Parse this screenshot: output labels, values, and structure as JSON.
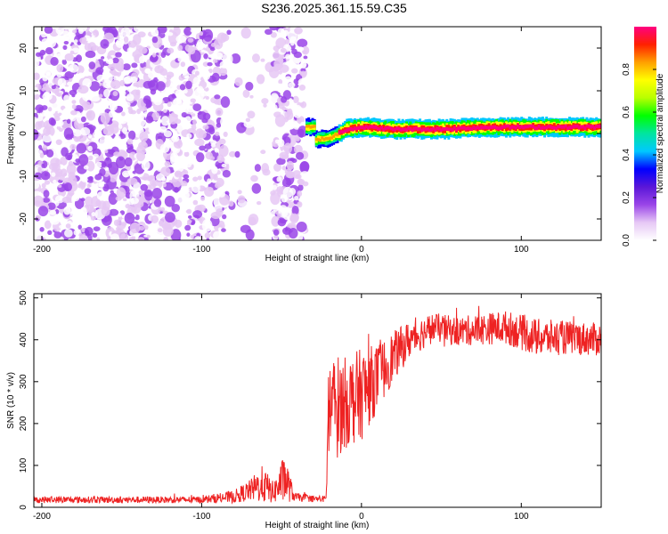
{
  "title": "S236.2025.361.15.59.C35",
  "chart_data": [
    {
      "type": "heatmap",
      "xlabel": "Height of straight line (km)",
      "ylabel": "Frequency (Hz)",
      "xlim": [
        -205,
        150
      ],
      "ylim": [
        -25,
        25
      ],
      "x_ticks": [
        -200,
        -100,
        0,
        100
      ],
      "y_ticks": [
        -20,
        -10,
        0,
        10,
        20
      ],
      "colorbar": {
        "label": "Normalized spectral amplitude",
        "range": [
          0,
          1
        ],
        "ticks": [
          "0.0",
          "0.2",
          "0.4",
          "0.6",
          "0.8"
        ],
        "colormap": [
          "#ffffff",
          "#e6c8f5",
          "#9a45e8",
          "#5a17d8",
          "#0000ff",
          "#00c8ff",
          "#00e5a0",
          "#00ff00",
          "#b8ff00",
          "#ffff00",
          "#ffa000",
          "#ff2000",
          "#ff0080"
        ]
      },
      "regions": [
        {
          "description": "scattered noise",
          "x": [
            -205,
            -35
          ],
          "y": [
            -25,
            25
          ],
          "amplitude": [
            0.0,
            0.2
          ]
        },
        {
          "description": "signal ridge",
          "x": [
            -35,
            150
          ],
          "y_center": [
            [
              -30,
              -1.5
            ],
            [
              -20,
              -1.0
            ],
            [
              -10,
              1.0
            ],
            [
              0,
              1.5
            ],
            [
              20,
              1.0
            ],
            [
              50,
              1.0
            ],
            [
              80,
              1.5
            ],
            [
              110,
              1.5
            ],
            [
              150,
              1.5
            ]
          ],
          "amplitude": [
            0.6,
            1.0
          ]
        }
      ]
    },
    {
      "type": "line",
      "xlabel": "Height of straight line (km)",
      "ylabel": "SNR (10 * v/v)",
      "xlim": [
        -205,
        150
      ],
      "ylim": [
        0,
        510
      ],
      "x_ticks": [
        -200,
        -100,
        0,
        100
      ],
      "y_ticks": [
        0,
        100,
        200,
        300,
        400,
        500
      ],
      "series": [
        {
          "color": "#ee2222",
          "envelope": [
            {
              "x": -205,
              "base": 18,
              "noise": 8
            },
            {
              "x": -100,
              "base": 18,
              "noise": 8
            },
            {
              "x": -90,
              "base": 22,
              "noise": 12
            },
            {
              "x": -80,
              "base": 25,
              "noise": 15
            },
            {
              "x": -70,
              "base": 40,
              "noise": 25
            },
            {
              "x": -62,
              "base": 55,
              "noise": 45
            },
            {
              "x": -55,
              "base": 35,
              "noise": 25
            },
            {
              "x": -48,
              "base": 70,
              "noise": 60
            },
            {
              "x": -42,
              "base": 25,
              "noise": 10
            },
            {
              "x": -30,
              "base": 20,
              "noise": 8
            },
            {
              "x": -22,
              "base": 20,
              "noise": 8
            },
            {
              "x": -21,
              "base": 230,
              "noise": 140
            },
            {
              "x": -10,
              "base": 250,
              "noise": 110
            },
            {
              "x": 0,
              "base": 270,
              "noise": 110
            },
            {
              "x": 10,
              "base": 310,
              "noise": 80
            },
            {
              "x": 20,
              "base": 360,
              "noise": 60
            },
            {
              "x": 30,
              "base": 400,
              "noise": 45
            },
            {
              "x": 45,
              "base": 430,
              "noise": 35
            },
            {
              "x": 60,
              "base": 420,
              "noise": 35
            },
            {
              "x": 90,
              "base": 430,
              "noise": 40
            },
            {
              "x": 110,
              "base": 405,
              "noise": 45
            },
            {
              "x": 130,
              "base": 405,
              "noise": 40
            },
            {
              "x": 150,
              "base": 400,
              "noise": 40
            }
          ]
        }
      ]
    }
  ]
}
